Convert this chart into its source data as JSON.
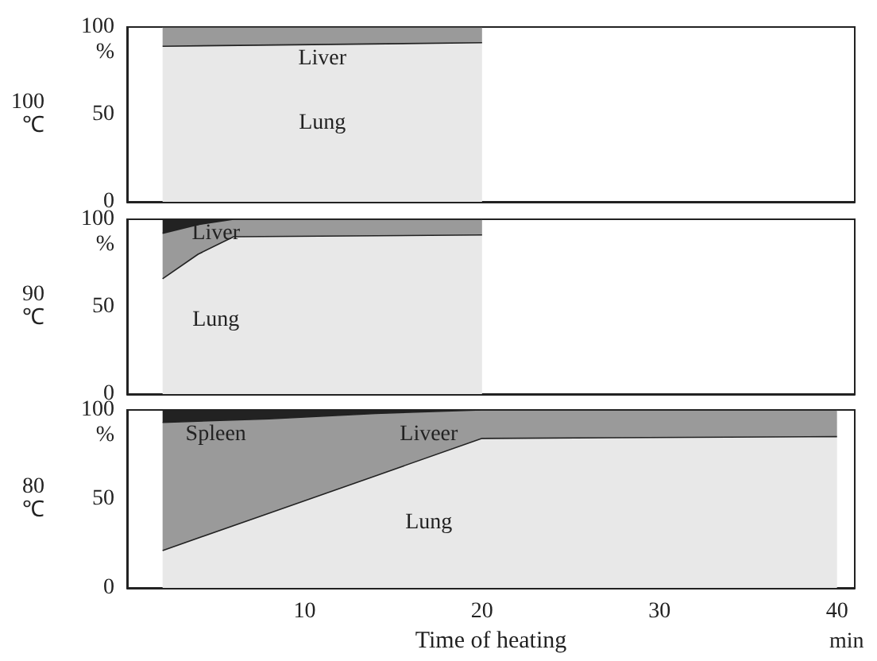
{
  "chart_data": [
    {
      "type": "area",
      "stacked": true,
      "ylabel": "100\n℃",
      "annotations": [
        "%"
      ],
      "tick_labels": "y",
      "xlim": [
        0,
        41
      ],
      "xticks": [
        10,
        20,
        30,
        40
      ],
      "ylim": [
        0,
        100
      ],
      "yticks": [
        0,
        50,
        100
      ],
      "x": [
        2,
        20
      ],
      "series": [
        {
          "name": "Lung",
          "color": "#e8e8e8",
          "values": [
            89,
            91
          ]
        },
        {
          "name": "Liver",
          "color": "#9a9a9a",
          "values": [
            11,
            9
          ]
        }
      ]
    },
    {
      "type": "area",
      "stacked": true,
      "ylabel": "90\n℃",
      "annotations": [
        "%"
      ],
      "tick_labels": "y",
      "xlim": [
        0,
        41
      ],
      "xticks": [
        10,
        20,
        30,
        40
      ],
      "ylim": [
        0,
        100
      ],
      "yticks": [
        0,
        50,
        100
      ],
      "x": [
        2,
        4,
        6,
        20
      ],
      "series": [
        {
          "name": "Lung",
          "color": "#e8e8e8",
          "values": [
            66,
            80,
            90,
            91
          ]
        },
        {
          "name": "Liver",
          "color": "#9a9a9a",
          "values": [
            26,
            17,
            10,
            9
          ]
        },
        {
          "name": null,
          "color": "#222222",
          "values": [
            8,
            3,
            0,
            0
          ]
        }
      ]
    },
    {
      "type": "area",
      "stacked": true,
      "ylabel": "80\n℃",
      "xlabel": "Time of heating",
      "annotations": [
        "%",
        "min"
      ],
      "xlim": [
        0,
        41
      ],
      "xticks": [
        10,
        20,
        30,
        40
      ],
      "ylim": [
        0,
        100
      ],
      "yticks": [
        0,
        50,
        100
      ],
      "x": [
        2,
        8,
        14,
        20,
        40
      ],
      "series": [
        {
          "name": "Lung",
          "color": "#e8e8e8",
          "values": [
            21,
            42,
            63,
            84,
            85
          ]
        },
        {
          "name": "Liveer",
          "color": "#9a9a9a",
          "values": [
            72,
            53,
            35,
            16,
            15
          ]
        },
        {
          "name": "Spleen",
          "color": "#222222",
          "values": [
            7,
            5,
            2,
            0,
            0
          ]
        }
      ]
    }
  ]
}
